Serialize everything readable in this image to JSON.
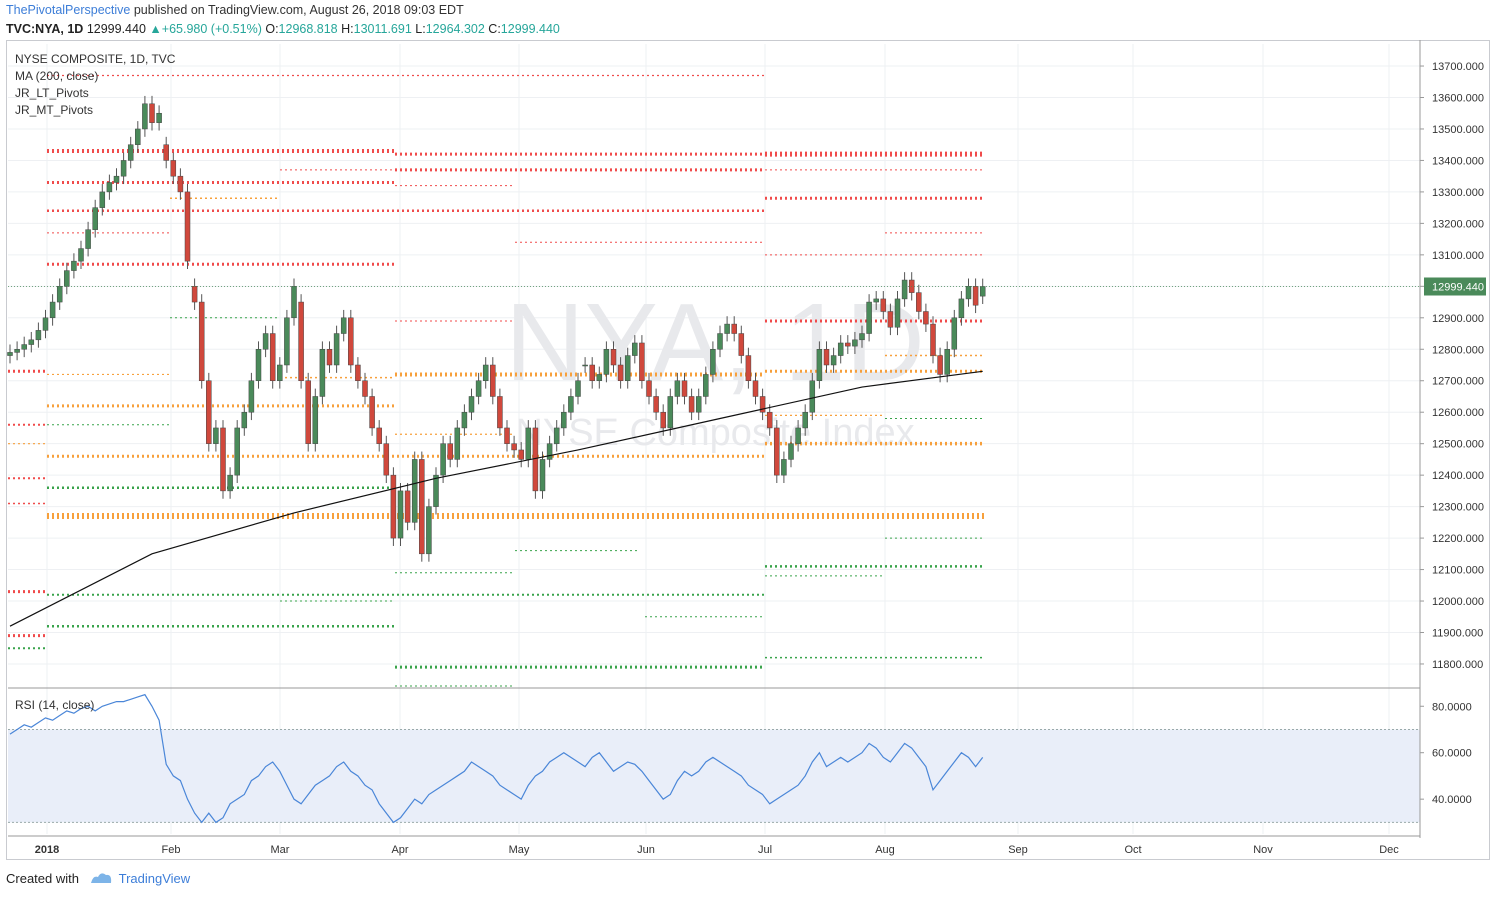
{
  "header": {
    "author": "ThePivotalPerspective",
    "published": "published on TradingView.com, August 26, 2018 09:03 EDT",
    "symbol": "TVC:NYA, 1D",
    "last": "12999.440",
    "change_text": "+65.980 (+0.51%)",
    "o_label": "O:",
    "o": "12968.818",
    "h_label": "H:",
    "h": "13011.691",
    "l_label": "L:",
    "l": "12964.302",
    "c_label": "C:",
    "c": "12999.440"
  },
  "legend": {
    "title": "NYSE COMPOSITE, 1D, TVC",
    "ma": "MA (200, close)",
    "lt": "JR_LT_Pivots",
    "mt": "JR_MT_Pivots",
    "rsi": "RSI (14, close)"
  },
  "watermark": {
    "big": "NYA, 1D",
    "sub": "NYSE Composite Index"
  },
  "footer": {
    "created": "Created with",
    "brand": "TradingView"
  },
  "colors": {
    "up": "#4a8a5a",
    "down": "#d0483c",
    "ma": "#111111",
    "rsi": "#4a86d8",
    "red_pivot": "#f04b4b",
    "orange_pivot": "#f7a03c",
    "green_pivot": "#39a34b",
    "last_price_bg": "#4a8a5a"
  },
  "chart_data": [
    {
      "type": "candlestick",
      "title": "NYSE COMPOSITE, 1D, TVC",
      "x_ticks": [
        "2018",
        "Feb",
        "Mar",
        "Apr",
        "May",
        "Jun",
        "Jul",
        "Aug",
        "Sep",
        "Oct",
        "Nov",
        "Dec"
      ],
      "y_ticks": [
        "13700.000",
        "13600.000",
        "13500.000",
        "13400.000",
        "13300.000",
        "13200.000",
        "13100.000",
        "13000.000",
        "12900.000",
        "12800.000",
        "12700.000",
        "12600.000",
        "12500.000",
        "12400.000",
        "12300.000",
        "12200.000",
        "12100.000",
        "12000.000",
        "11900.000",
        "11800.000"
      ],
      "ylim": [
        11730,
        13770
      ],
      "last_price_label": "12999.440",
      "close": [
        12790,
        12800,
        12815,
        12830,
        12860,
        12900,
        12950,
        13000,
        13050,
        13080,
        13120,
        13180,
        13250,
        13300,
        13330,
        13350,
        13400,
        13450,
        13500,
        13580,
        13520,
        13550,
        13400,
        13350,
        13300,
        13080,
        12950,
        12700,
        12500,
        12550,
        12350,
        12400,
        12550,
        12600,
        12700,
        12800,
        12850,
        12700,
        12750,
        12900,
        13000,
        12700,
        12500,
        12650,
        12800,
        12750,
        12850,
        12900,
        12750,
        12700,
        12650,
        12550,
        12500,
        12400,
        12200,
        12350,
        12250,
        12450,
        12150,
        12300,
        12400,
        12500,
        12450,
        12550,
        12600,
        12650,
        12700,
        12750,
        12650,
        12550,
        12500,
        12480,
        12450,
        12550,
        12350,
        12450,
        12500,
        12550,
        12600,
        12650,
        12700,
        12750,
        12700,
        12720,
        12800,
        12750,
        12700,
        12780,
        12820,
        12700,
        12650,
        12600,
        12550,
        12650,
        12700,
        12650,
        12600,
        12650,
        12720,
        12800,
        12850,
        12880,
        12850,
        12780,
        12700,
        12650,
        12600,
        12550,
        12400,
        12450,
        12500,
        12550,
        12600,
        12700,
        12800,
        12750,
        12780,
        12820,
        12810,
        12830,
        12850,
        12950,
        12960,
        12920,
        12870,
        12960,
        13020,
        12980,
        12920,
        12880,
        12780,
        12720,
        12800,
        12900,
        12960,
        13000,
        12940,
        12999.44
      ],
      "open": [
        12780,
        12790,
        12800,
        12815,
        12830,
        12860,
        12900,
        12950,
        13000,
        13050,
        13080,
        13120,
        13180,
        13250,
        13300,
        13330,
        13350,
        13400,
        13450,
        13500,
        13580,
        13520,
        13450,
        13400,
        13350,
        13300,
        13000,
        12950,
        12700,
        12500,
        12550,
        12350,
        12400,
        12550,
        12600,
        12700,
        12800,
        12850,
        12700,
        12750,
        12900,
        12950,
        12700,
        12500,
        12650,
        12800,
        12750,
        12850,
        12900,
        12750,
        12700,
        12650,
        12550,
        12500,
        12400,
        12200,
        12350,
        12250,
        12450,
        12150,
        12300,
        12400,
        12500,
        12450,
        12550,
        12600,
        12650,
        12700,
        12750,
        12650,
        12550,
        12500,
        12480,
        12450,
        12550,
        12350,
        12450,
        12500,
        12550,
        12600,
        12650,
        12750,
        12750,
        12700,
        12720,
        12800,
        12750,
        12700,
        12780,
        12820,
        12700,
        12650,
        12600,
        12550,
        12650,
        12700,
        12650,
        12600,
        12650,
        12720,
        12800,
        12850,
        12880,
        12850,
        12780,
        12700,
        12650,
        12600,
        12550,
        12400,
        12450,
        12500,
        12550,
        12600,
        12700,
        12800,
        12750,
        12780,
        12820,
        12810,
        12830,
        12850,
        12950,
        12960,
        12920,
        12870,
        12960,
        13020,
        12980,
        12920,
        12880,
        12780,
        12720,
        12800,
        12900,
        12960,
        13000,
        12968.818
      ]
    },
    {
      "type": "line",
      "name": "MA (200, close)",
      "x_day": [
        0,
        20,
        40,
        60,
        80,
        100,
        120,
        137
      ],
      "values": [
        11920,
        12150,
        12280,
        12390,
        12480,
        12580,
        12680,
        12730
      ]
    },
    {
      "type": "line",
      "name": "RSI (14, close)",
      "y_ticks": [
        "80.0000",
        "60.0000",
        "40.0000"
      ],
      "ylim": [
        25,
        87
      ],
      "bands": [
        30,
        70
      ],
      "values": [
        68,
        70,
        72,
        71,
        73,
        75,
        74,
        76,
        78,
        77,
        79,
        80,
        78,
        80,
        81,
        82,
        82,
        83,
        84,
        85,
        80,
        74,
        55,
        50,
        48,
        40,
        34,
        30,
        34,
        30,
        32,
        38,
        40,
        42,
        48,
        50,
        54,
        56,
        52,
        46,
        40,
        38,
        42,
        46,
        48,
        50,
        54,
        56,
        52,
        50,
        46,
        44,
        38,
        34,
        30,
        32,
        36,
        40,
        38,
        42,
        44,
        46,
        48,
        50,
        52,
        56,
        54,
        52,
        50,
        46,
        44,
        42,
        40,
        46,
        50,
        52,
        56,
        58,
        60,
        58,
        56,
        54,
        58,
        60,
        56,
        52,
        54,
        56,
        55,
        52,
        48,
        44,
        40,
        42,
        48,
        52,
        50,
        52,
        56,
        58,
        56,
        54,
        52,
        50,
        46,
        44,
        42,
        38,
        40,
        42,
        44,
        46,
        50,
        56,
        60,
        54,
        56,
        58,
        56,
        58,
        60,
        64,
        62,
        58,
        56,
        60,
        64,
        62,
        58,
        54,
        44,
        48,
        52,
        56,
        60,
        58,
        54,
        58
      ]
    }
  ]
}
